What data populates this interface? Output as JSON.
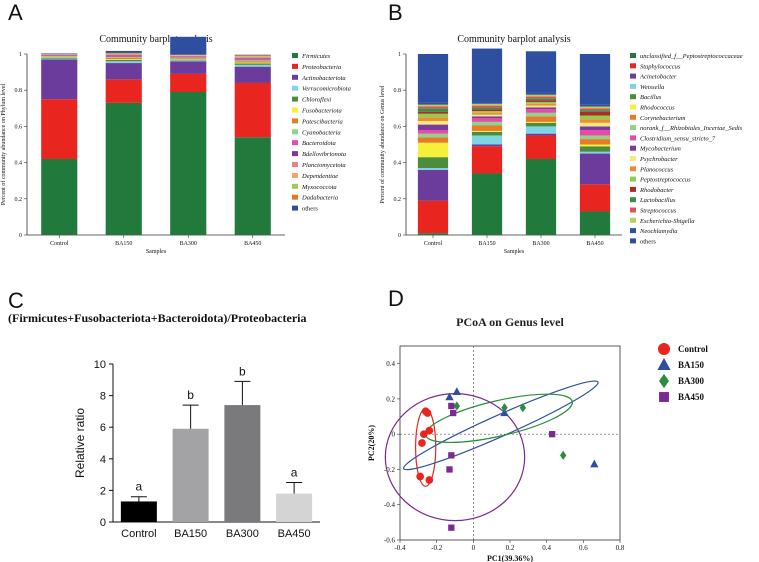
{
  "panels": {
    "a": "A",
    "b": "B",
    "c": "C",
    "d": "D"
  },
  "chart_data": [
    {
      "type": "bar",
      "stacked": true,
      "title": "Community barplot analysis",
      "xlabel": "Samples",
      "ylabel": "Percent of community abundance on Phylum level",
      "ylim": [
        0,
        1
      ],
      "yticks": [
        "0",
        "0.2",
        "0.4",
        "0.6",
        "0.8",
        "1"
      ],
      "categories": [
        "Control",
        "BA150",
        "BA300",
        "BA450"
      ],
      "series": [
        {
          "name": "Firmicutes",
          "color": "#217a3c",
          "values": [
            0.42,
            0.73,
            0.79,
            0.54
          ]
        },
        {
          "name": "Proteobacteria",
          "color": "#e8251e",
          "values": [
            0.33,
            0.13,
            0.1,
            0.3
          ]
        },
        {
          "name": "Actinobacteriota",
          "color": "#6c3c9c",
          "values": [
            0.22,
            0.09,
            0.07,
            0.09
          ]
        },
        {
          "name": "Verrucomicrobiota",
          "color": "#7fd4e6",
          "values": [
            0.005,
            0.01,
            0.005,
            0.01
          ]
        },
        {
          "name": "Chloroflexi",
          "color": "#4d8c3c",
          "values": [
            0.005,
            0.008,
            0.004,
            0.008
          ]
        },
        {
          "name": "Fusobacteriota",
          "color": "#f5f03c",
          "values": [
            0.003,
            0.004,
            0.003,
            0.005
          ]
        },
        {
          "name": "Patescibacteria",
          "color": "#e87b2a",
          "values": [
            0.002,
            0.006,
            0.004,
            0.006
          ]
        },
        {
          "name": "Cyanobacteria",
          "color": "#8dd48a",
          "values": [
            0.004,
            0.005,
            0.004,
            0.006
          ]
        },
        {
          "name": "Bacteroidota",
          "color": "#e64ba8",
          "values": [
            0.003,
            0.006,
            0.004,
            0.006
          ]
        },
        {
          "name": "Bdellovibrionota",
          "color": "#7a3aa0",
          "values": [
            0.002,
            0.004,
            0.003,
            0.005
          ]
        },
        {
          "name": "Planctomycetota",
          "color": "#f08080",
          "values": [
            0.002,
            0.004,
            0.003,
            0.005
          ]
        },
        {
          "name": "Dependentiae",
          "color": "#f2a46a",
          "values": [
            0.001,
            0.003,
            0.002,
            0.004
          ]
        },
        {
          "name": "Myxococcota",
          "color": "#a3c85a",
          "values": [
            0.001,
            0.003,
            0.002,
            0.004
          ]
        },
        {
          "name": "Dadabacteria",
          "color": "#e07830",
          "values": [
            0.001,
            0.003,
            0.002,
            0.004
          ]
        },
        {
          "name": "others",
          "color": "#2e4fa0",
          "values": [
            0.004,
            0.011,
            0.099,
            0.003
          ]
        }
      ]
    },
    {
      "type": "bar",
      "stacked": true,
      "title": "Community barplot analysis",
      "xlabel": "Samples",
      "ylabel": "Percent of community abundance on Genus level",
      "ylim": [
        0,
        1
      ],
      "yticks": [
        "0",
        "0.2",
        "0.4",
        "0.6",
        "0.8",
        "1"
      ],
      "categories": [
        "Control",
        "BA150",
        "BA300",
        "BA450"
      ],
      "series": [
        {
          "name": "unclassified_f__Peptostreptococcaceae",
          "color": "#217a3c",
          "values": [
            0.01,
            0.34,
            0.42,
            0.13
          ]
        },
        {
          "name": "Staphylococcus",
          "color": "#e8251e",
          "values": [
            0.18,
            0.15,
            0.13,
            0.15
          ]
        },
        {
          "name": "Acinetobacter",
          "color": "#6c3c9c",
          "values": [
            0.17,
            0.01,
            0.01,
            0.17
          ]
        },
        {
          "name": "Weissella",
          "color": "#7fd4e6",
          "values": [
            0.01,
            0.05,
            0.04,
            0.01
          ]
        },
        {
          "name": "Bacillus",
          "color": "#4d8c3c",
          "values": [
            0.06,
            0.02,
            0.02,
            0.03
          ]
        },
        {
          "name": "Rhodococcus",
          "color": "#f5f03c",
          "values": [
            0.08,
            0.005,
            0.005,
            0.01
          ]
        },
        {
          "name": "Corynebacterium",
          "color": "#e87b2a",
          "values": [
            0.03,
            0.03,
            0.03,
            0.03
          ]
        },
        {
          "name": "norank_f__Rhizobiales_Incertae_Sedis",
          "color": "#8dd48a",
          "values": [
            0.02,
            0.02,
            0.02,
            0.02
          ]
        },
        {
          "name": "Clostridium_sensu_stricto_7",
          "color": "#e64ba8",
          "values": [
            0.02,
            0.02,
            0.02,
            0.03
          ]
        },
        {
          "name": "Mycobacterium",
          "color": "#7a3aa0",
          "values": [
            0.03,
            0.01,
            0.01,
            0.02
          ]
        },
        {
          "name": "Psychrobacter",
          "color": "#f2ea7a",
          "values": [
            0.02,
            0.01,
            0.01,
            0.02
          ]
        },
        {
          "name": "Planococcus",
          "color": "#f08a3a",
          "values": [
            0.02,
            0.01,
            0.01,
            0.02
          ]
        },
        {
          "name": "Peptostreptococcus",
          "color": "#8fd04a",
          "values": [
            0.02,
            0.01,
            0.01,
            0.02
          ]
        },
        {
          "name": "Rhodobacter",
          "color": "#b02a2a",
          "values": [
            0.01,
            0.01,
            0.01,
            0.02
          ]
        },
        {
          "name": "Lactobacillus",
          "color": "#3c8c4c",
          "values": [
            0.02,
            0.01,
            0.01,
            0.01
          ]
        },
        {
          "name": "Streptococcus",
          "color": "#e85050",
          "values": [
            0.01,
            0.01,
            0.01,
            0.01
          ]
        },
        {
          "name": "Escherichia-Shigella",
          "color": "#b8d060",
          "values": [
            0.01,
            0.01,
            0.01,
            0.01
          ]
        },
        {
          "name": "Neochlamydia",
          "color": "#3050a0",
          "values": [
            0.01,
            0.01,
            0.01,
            0.01
          ]
        },
        {
          "name": "others",
          "color": "#2e4fa0",
          "values": [
            0.27,
            0.295,
            0.23,
            0.28
          ]
        }
      ]
    },
    {
      "type": "bar",
      "title": "(Firmicutes+Fusobacteriota+Bacteroidota)/Proteobacteria",
      "xlabel": "",
      "ylabel": "Relative ratio",
      "ylim": [
        0,
        10
      ],
      "yticks": [
        "0",
        "2",
        "4",
        "6",
        "8",
        "10"
      ],
      "categories": [
        "Control",
        "BA150",
        "BA300",
        "BA450"
      ],
      "values": [
        1.3,
        5.9,
        7.4,
        1.8
      ],
      "errors": [
        0.3,
        1.5,
        1.5,
        0.7
      ],
      "significance": [
        "a",
        "b",
        "b",
        "a"
      ],
      "colors": [
        "#000000",
        "#a3a3a6",
        "#7a7a7c",
        "#d4d4d4"
      ]
    },
    {
      "type": "scatter",
      "title": "PCoA on Genus level",
      "xlabel": "PC1(39.36%)",
      "ylabel": "PC2(20%)",
      "xlim": [
        -0.4,
        0.8
      ],
      "ylim": [
        -0.6,
        0.5
      ],
      "xticks": [
        "-0.4",
        "-0.2",
        "0",
        "0.2",
        "0.4",
        "0.6",
        "0.8"
      ],
      "yticks": [
        "-0.6",
        "-0.4",
        "-0.2",
        "0",
        "0.2",
        "0.4"
      ],
      "series": [
        {
          "name": "Control",
          "marker": "circle",
          "color": "#e8251e",
          "points": [
            [
              -0.26,
              0.13
            ],
            [
              -0.25,
              0.12
            ],
            [
              -0.24,
              0.02
            ],
            [
              -0.28,
              -0.05
            ],
            [
              -0.27,
              0.0
            ],
            [
              -0.29,
              -0.24
            ],
            [
              -0.24,
              -0.26
            ]
          ],
          "ellipse": {
            "cx": -0.26,
            "cy": -0.075,
            "rx": 0.055,
            "ry": 0.22,
            "angle": 0
          }
        },
        {
          "name": "BA150",
          "marker": "triangle",
          "color": "#2e4fa0",
          "points": [
            [
              -0.09,
              0.24
            ],
            [
              -0.13,
              0.21
            ],
            [
              0.17,
              0.12
            ],
            [
              0.66,
              -0.17
            ]
          ],
          "ellipse": {
            "cx": 0.15,
            "cy": 0.05,
            "rx": 0.58,
            "ry": 0.06,
            "angle": -24
          }
        },
        {
          "name": "BA300",
          "marker": "diamond",
          "color": "#2a8c3c",
          "points": [
            [
              -0.09,
              0.16
            ],
            [
              0.17,
              0.15
            ],
            [
              0.27,
              0.15
            ],
            [
              0.49,
              -0.12
            ]
          ],
          "ellipse": {
            "cx": 0.14,
            "cy": 0.09,
            "rx": 0.41,
            "ry": 0.1,
            "angle": -13
          }
        },
        {
          "name": "BA450",
          "marker": "square",
          "color": "#7a2a90",
          "points": [
            [
              -0.12,
              0.16
            ],
            [
              -0.11,
              0.12
            ],
            [
              -0.12,
              -0.12
            ],
            [
              -0.13,
              -0.2
            ],
            [
              0.43,
              0.0
            ],
            [
              -0.12,
              -0.53
            ]
          ],
          "ellipse": {
            "cx": -0.1,
            "cy": -0.13,
            "rx": 0.38,
            "ry": 0.36,
            "angle": 0
          }
        }
      ]
    }
  ]
}
